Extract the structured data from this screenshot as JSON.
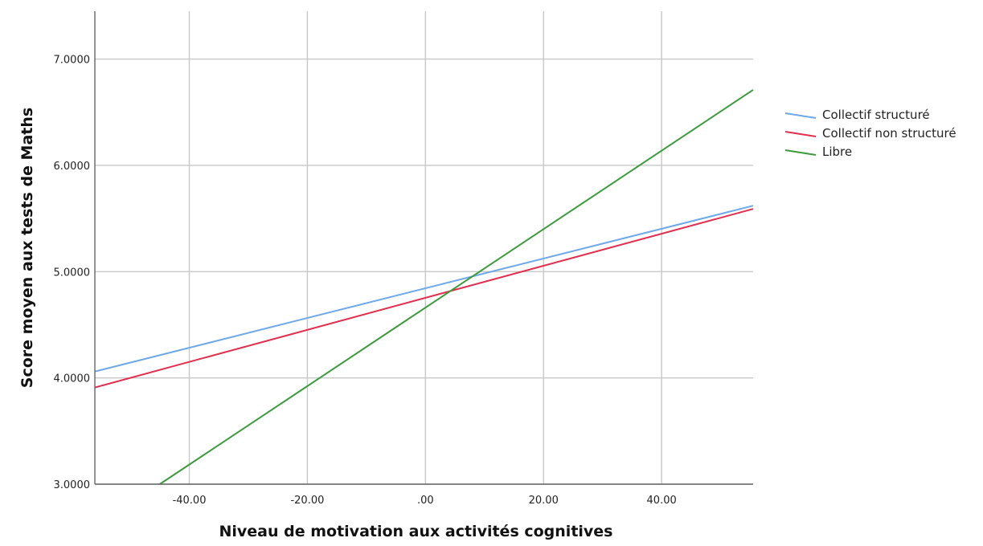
{
  "chart_data": {
    "type": "line",
    "title": "",
    "xlabel": "Niveau de motivation aux activités cognitives",
    "ylabel": "Score moyen aux tests de Maths",
    "xlim": [
      -56.0,
      55.5
    ],
    "ylim": [
      3.0,
      7.45
    ],
    "x_ticks": [
      -40,
      -20,
      0,
      20,
      40
    ],
    "x_tick_labels": [
      "-40.00",
      "-20.00",
      ".00",
      "20.00",
      "40.00"
    ],
    "y_ticks": [
      3,
      4,
      5,
      6,
      7
    ],
    "y_tick_labels": [
      "3.0000",
      "4.0000",
      "5.0000",
      "6.0000",
      "7.0000"
    ],
    "grid": true,
    "legend_position": "right",
    "series": [
      {
        "name": "Collectif structuré",
        "color": "#6fa8e8",
        "x": [
          -56.0,
          55.5
        ],
        "y": [
          4.06,
          5.62
        ]
      },
      {
        "name": "Collectif non structuré",
        "color": "#e0304f",
        "x": [
          -56.0,
          55.5
        ],
        "y": [
          3.91,
          5.59
        ]
      },
      {
        "name": "Libre",
        "color": "#3e9a3e",
        "x": [
          -45.0,
          55.5
        ],
        "y": [
          3.0,
          6.71
        ]
      }
    ]
  }
}
